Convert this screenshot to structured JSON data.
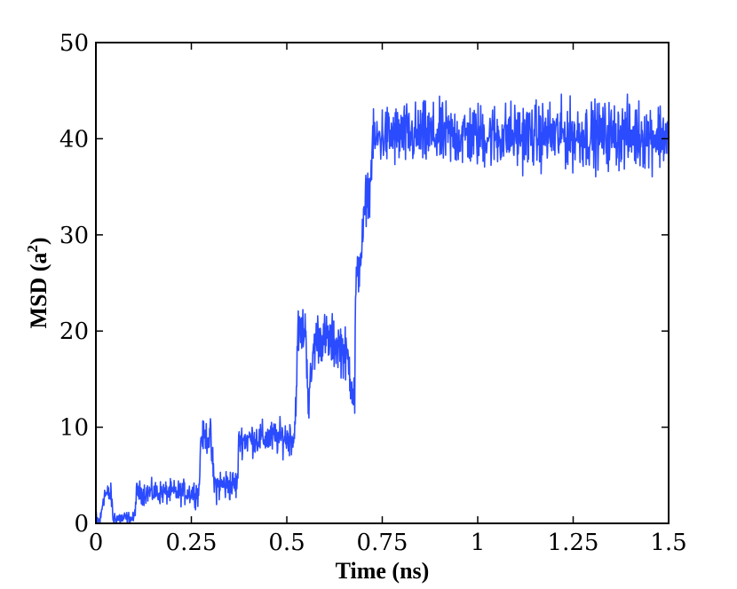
{
  "chart_data": {
    "type": "line",
    "title": "",
    "xlabel": "Time (ns)",
    "ylabel": "MSD (a²)",
    "ylabel_base": "MSD (a",
    "ylabel_sup": "2",
    "ylabel_close": ")",
    "xlim": [
      0,
      1.5
    ],
    "ylim": [
      0,
      50
    ],
    "xticks": [
      0,
      0.25,
      0.5,
      0.75,
      1,
      1.25,
      1.5
    ],
    "xtick_labels": [
      "0",
      "0.25",
      "0.5",
      "0.75",
      "1",
      "1.25",
      "1.5"
    ],
    "yticks": [
      0,
      10,
      20,
      30,
      40,
      50
    ],
    "ytick_labels": [
      "0",
      "10",
      "20",
      "30",
      "40",
      "50"
    ],
    "grid": false,
    "legend": "none",
    "series": [
      {
        "color": "#2b4bff",
        "mean": {
          "x": [
            0.0,
            0.012,
            0.02,
            0.04,
            0.045,
            0.1,
            0.107,
            0.27,
            0.275,
            0.3,
            0.31,
            0.37,
            0.375,
            0.52,
            0.53,
            0.55,
            0.557,
            0.57,
            0.58,
            0.64,
            0.66,
            0.678,
            0.68,
            0.69,
            0.7,
            0.71,
            0.715,
            0.72,
            0.725,
            0.73,
            0.745,
            1.5
          ],
          "y": [
            0.0,
            0.2,
            3.0,
            3.0,
            0.5,
            0.5,
            3.2,
            3.2,
            9.0,
            9.0,
            4.0,
            4.0,
            8.7,
            9.0,
            20.0,
            20.0,
            12.0,
            18.0,
            19.5,
            18.5,
            17.0,
            13.0,
            24.0,
            27.0,
            30.0,
            35.0,
            34.0,
            36.0,
            40.0,
            39.5,
            40.3,
            40.4
          ]
        },
        "noise_amplitude": {
          "x": [
            0.0,
            0.1,
            0.107,
            0.27,
            0.3,
            0.37,
            0.52,
            0.53,
            0.7,
            0.72,
            0.745,
            1.5
          ],
          "y": [
            1.2,
            0.5,
            1.0,
            1.1,
            1.6,
            1.4,
            1.6,
            2.2,
            2.4,
            2.0,
            2.8,
            3.0
          ]
        },
        "samples": 1500
      }
    ]
  }
}
